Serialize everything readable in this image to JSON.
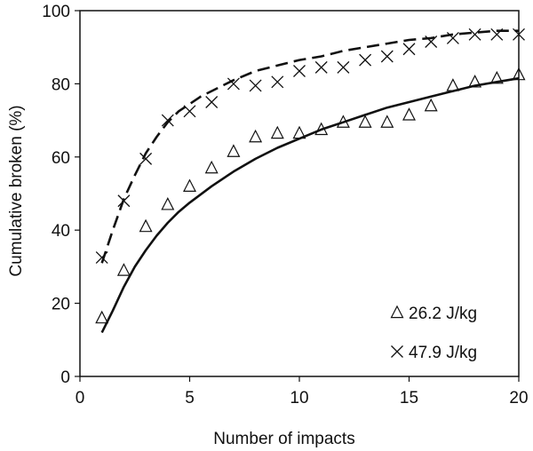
{
  "chart_data": {
    "type": "scatter",
    "title": "",
    "xlabel": "Number of impacts",
    "ylabel": "Cumulative broken (%)",
    "xlim": [
      0,
      20
    ],
    "ylim": [
      0,
      100
    ],
    "xticks": [
      0,
      5,
      10,
      15,
      20
    ],
    "yticks": [
      0,
      20,
      40,
      60,
      80,
      100
    ],
    "grid": false,
    "legend_position": "bottom-right",
    "series": [
      {
        "name": "26.2 J/kg",
        "marker": "triangle",
        "x": [
          1,
          2,
          3,
          4,
          5,
          6,
          7,
          8,
          9,
          10,
          11,
          12,
          13,
          14,
          15,
          16,
          17,
          18,
          19,
          20
        ],
        "y": [
          16,
          29,
          41,
          47,
          52,
          57,
          61.5,
          65.5,
          66.5,
          66.5,
          67.5,
          69.5,
          69.5,
          69.5,
          71.5,
          74,
          79.5,
          80.5,
          81.5,
          82.5
        ],
        "fit": {
          "style": "solid",
          "x": [
            1,
            1.5,
            2,
            2.5,
            3,
            3.5,
            4,
            4.5,
            5,
            6,
            7,
            8,
            9,
            10,
            11,
            12,
            13,
            14,
            15,
            16,
            17,
            18,
            19,
            20
          ],
          "y": [
            12,
            18,
            24.5,
            30,
            34.5,
            38.5,
            42,
            45,
            47.5,
            52,
            56,
            59.5,
            62.5,
            65,
            67.5,
            69.5,
            71.5,
            73.5,
            75,
            76.5,
            78,
            79.5,
            80.5,
            81.5
          ]
        }
      },
      {
        "name": "47.9 J/kg",
        "marker": "x",
        "x": [
          1,
          2,
          3,
          4,
          5,
          6,
          7,
          8,
          9,
          10,
          11,
          12,
          13,
          14,
          15,
          16,
          17,
          18,
          19,
          20
        ],
        "y": [
          32.5,
          48,
          59.5,
          70,
          72.5,
          75,
          80,
          79.5,
          80.5,
          83.5,
          84.5,
          84.5,
          86.5,
          87.5,
          89.5,
          91.5,
          92.5,
          93.5,
          93.5,
          93.5
        ],
        "fit": {
          "style": "dashed",
          "x": [
            1,
            1.5,
            2,
            2.5,
            3,
            3.5,
            4,
            4.5,
            5,
            5.5,
            6,
            7,
            8,
            9,
            10,
            11,
            12,
            13,
            14,
            15,
            16,
            17,
            18,
            19,
            20
          ],
          "y": [
            31,
            40,
            48.5,
            55,
            61,
            65.5,
            69.5,
            72.5,
            74.5,
            76.5,
            78,
            81,
            83.5,
            85,
            86.5,
            87.5,
            89,
            90,
            91,
            92,
            92.5,
            93.5,
            94,
            94.5,
            94.5
          ]
        }
      }
    ]
  }
}
